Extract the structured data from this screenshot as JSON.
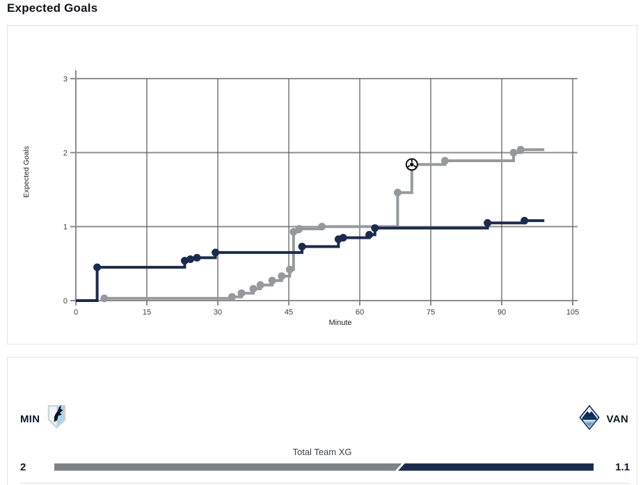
{
  "page_title": "Expected Goals",
  "chart_data": {
    "type": "line",
    "subtype": "step-after-cumulative-xg",
    "xlabel": "Minute",
    "ylabel": "Expected Goals",
    "xlim": [
      0,
      105
    ],
    "ylim": [
      0,
      3
    ],
    "xticks": [
      0,
      15,
      30,
      45,
      60,
      75,
      90,
      105
    ],
    "yticks": [
      0,
      1,
      2,
      3
    ],
    "grid": true,
    "colors": {
      "h_grid": "#8c8c8c",
      "v_grid": "#606060",
      "axis": "#8c8c8c",
      "tick_text": "#3c3c3c"
    },
    "series": [
      {
        "name": "MIN",
        "color": "#95999d",
        "end_minute": 99,
        "points": [
          {
            "m": 6,
            "xg": 0.03
          },
          {
            "m": 33,
            "xg": 0.05
          },
          {
            "m": 35,
            "xg": 0.1
          },
          {
            "m": 37.5,
            "xg": 0.16
          },
          {
            "m": 39,
            "xg": 0.21
          },
          {
            "m": 41.5,
            "xg": 0.27
          },
          {
            "m": 43.5,
            "xg": 0.33
          },
          {
            "m": 45.2,
            "xg": 0.42
          },
          {
            "m": 46,
            "xg": 0.93
          },
          {
            "m": 47.2,
            "xg": 0.97
          },
          {
            "m": 52,
            "xg": 1.0
          },
          {
            "m": 68,
            "xg": 1.46
          },
          {
            "m": 71,
            "xg": 1.84,
            "goal": true
          },
          {
            "m": 78,
            "xg": 1.89
          },
          {
            "m": 92.5,
            "xg": 2.0
          },
          {
            "m": 94,
            "xg": 2.04
          }
        ]
      },
      {
        "name": "VAN",
        "color": "#1b2b4d",
        "end_minute": 99,
        "points": [
          {
            "m": 0,
            "xg": 0,
            "dot": false
          },
          {
            "m": 4.5,
            "xg": 0.45
          },
          {
            "m": 23,
            "xg": 0.54
          },
          {
            "m": 24.2,
            "xg": 0.56
          },
          {
            "m": 25.6,
            "xg": 0.58
          },
          {
            "m": 29.5,
            "xg": 0.65
          },
          {
            "m": 47.8,
            "xg": 0.73
          },
          {
            "m": 55.5,
            "xg": 0.83
          },
          {
            "m": 56.5,
            "xg": 0.85
          },
          {
            "m": 62,
            "xg": 0.89
          },
          {
            "m": 63.2,
            "xg": 0.98
          },
          {
            "m": 87,
            "xg": 1.05
          },
          {
            "m": 94.8,
            "xg": 1.08
          }
        ]
      }
    ]
  },
  "comparison": {
    "bar_label": "Total Team XG",
    "home": {
      "abbr": "MIN",
      "value": "2",
      "xg": 2.0,
      "color": "#7e8287"
    },
    "away": {
      "abbr": "VAN",
      "value": "1.1",
      "xg": 1.1,
      "color": "#1b2b4d"
    }
  }
}
